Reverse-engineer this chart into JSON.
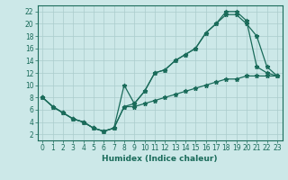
{
  "title": "",
  "xlabel": "Humidex (Indice chaleur)",
  "bg_color": "#cce8e8",
  "grid_color": "#aacccc",
  "line_color": "#1a6b5a",
  "xlim": [
    -0.5,
    23.5
  ],
  "ylim": [
    1,
    23
  ],
  "xticks": [
    0,
    1,
    2,
    3,
    4,
    5,
    6,
    7,
    8,
    9,
    10,
    11,
    12,
    13,
    14,
    15,
    16,
    17,
    18,
    19,
    20,
    21,
    22,
    23
  ],
  "yticks": [
    2,
    4,
    6,
    8,
    10,
    12,
    14,
    16,
    18,
    20,
    22
  ],
  "line1_x": [
    0,
    1,
    2,
    3,
    4,
    5,
    6,
    7,
    8,
    9,
    10,
    11,
    12,
    13,
    14,
    15,
    16,
    17,
    18,
    19,
    20,
    21,
    22,
    23
  ],
  "line1_y": [
    8,
    6.5,
    5.5,
    4.5,
    4.0,
    3.0,
    2.5,
    3.0,
    6.5,
    7.0,
    9.0,
    12.0,
    12.5,
    14.0,
    15.0,
    16.0,
    18.5,
    20.0,
    21.5,
    21.5,
    20.0,
    18.0,
    13.0,
    11.5
  ],
  "line2_x": [
    0,
    1,
    2,
    3,
    4,
    5,
    6,
    7,
    8,
    9,
    10,
    11,
    12,
    13,
    14,
    15,
    16,
    17,
    18,
    19,
    20,
    21,
    22,
    23
  ],
  "line2_y": [
    8,
    6.5,
    5.5,
    4.5,
    4.0,
    3.0,
    2.5,
    3.0,
    10.0,
    7.0,
    9.0,
    12.0,
    12.5,
    14.0,
    15.0,
    16.0,
    18.5,
    20.0,
    22.0,
    22.0,
    20.5,
    13.0,
    12.0,
    11.5
  ],
  "line3_x": [
    0,
    1,
    2,
    3,
    4,
    5,
    6,
    7,
    8,
    9,
    10,
    11,
    12,
    13,
    14,
    15,
    16,
    17,
    18,
    19,
    20,
    21,
    22,
    23
  ],
  "line3_y": [
    8,
    6.5,
    5.5,
    4.5,
    4.0,
    3.0,
    2.5,
    3.0,
    6.5,
    6.5,
    7.0,
    7.5,
    8.0,
    8.5,
    9.0,
    9.5,
    10.0,
    10.5,
    11.0,
    11.0,
    11.5,
    11.5,
    11.5,
    11.5
  ],
  "tick_fontsize": 5.5,
  "xlabel_fontsize": 6.5
}
